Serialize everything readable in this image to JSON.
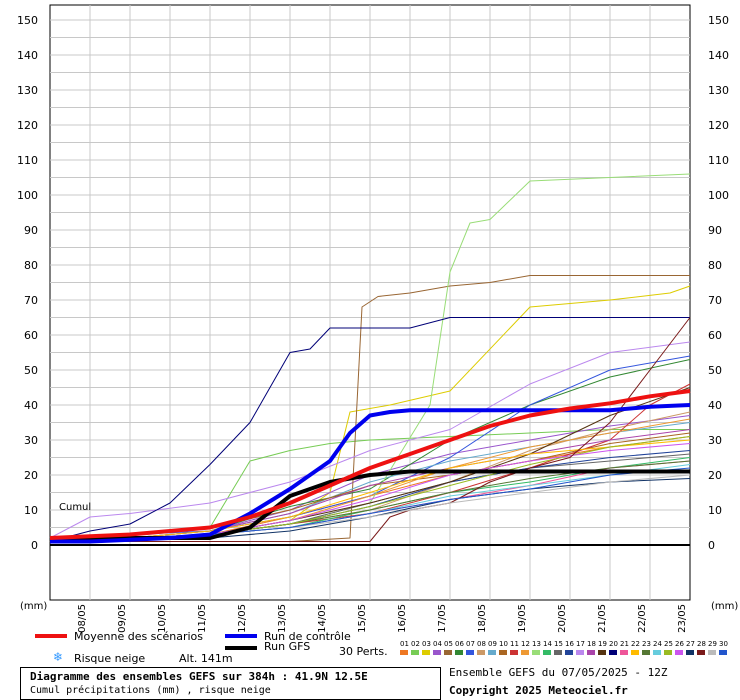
{
  "chart_data": {
    "type": "line",
    "title": "Diagramme des ensembles GEFS sur 384h : 41.9N 12.5E",
    "subtitle": "Cumul précipitations (mm) , risque neige",
    "ylabel": "(mm)",
    "xlabel": "(mm)",
    "corner_label": "Cumul",
    "ylim": [
      0,
      155
    ],
    "xlim": [
      0,
      16
    ],
    "yticks": [
      0,
      10,
      20,
      30,
      40,
      50,
      60,
      70,
      80,
      90,
      100,
      110,
      120,
      130,
      140,
      150
    ],
    "xtick_labels": [
      "08/05",
      "09/05",
      "10/05",
      "11/05",
      "12/05",
      "13/05",
      "14/05",
      "15/05",
      "16/05",
      "17/05",
      "18/05",
      "19/05",
      "20/05",
      "21/05",
      "22/05",
      "23/05"
    ],
    "grid": true,
    "series": [
      {
        "name": "Moyenne des scénarios",
        "color": "#ee1111",
        "width": 4,
        "x": [
          0,
          1,
          2,
          3,
          4,
          5,
          6,
          7,
          8,
          9,
          10,
          11,
          12,
          13,
          14,
          15,
          16
        ],
        "y": [
          2,
          2.5,
          3,
          4,
          5,
          8,
          12,
          17,
          22,
          26,
          30,
          34,
          37,
          39,
          40.5,
          42.5,
          44
        ]
      },
      {
        "name": "Run de contrôle",
        "color": "#0000ee",
        "width": 4,
        "x": [
          0,
          1,
          2,
          3,
          4,
          5,
          6,
          7,
          7.5,
          8,
          8.5,
          9,
          10,
          11,
          12,
          13,
          14,
          15,
          16
        ],
        "y": [
          1,
          1,
          1.5,
          2,
          3,
          9,
          16,
          24,
          32,
          37,
          38,
          38.5,
          38.5,
          38.5,
          38.5,
          38.5,
          38.5,
          39.5,
          40
        ]
      },
      {
        "name": "Run GFS",
        "color": "#000000",
        "width": 4,
        "x": [
          0,
          1,
          2,
          3,
          4,
          5,
          6,
          7,
          8,
          9,
          10,
          11,
          12,
          13,
          14,
          15,
          16
        ],
        "y": [
          1,
          1.5,
          2,
          2,
          2,
          5,
          14,
          18,
          20,
          21,
          21,
          21,
          21,
          21,
          21,
          21,
          21
        ]
      },
      {
        "name": "01",
        "color": "#ee7722",
        "x": [
          0,
          2,
          4,
          6,
          8,
          10,
          12,
          14,
          16
        ],
        "y": [
          1,
          2,
          3,
          8,
          14,
          20,
          24,
          28,
          31
        ]
      },
      {
        "name": "02",
        "color": "#77cc55",
        "x": [
          0,
          2,
          4,
          5,
          6,
          7,
          8,
          10,
          12,
          14,
          16
        ],
        "y": [
          1,
          3,
          5,
          24,
          27,
          29,
          30,
          31,
          32,
          33,
          33
        ]
      },
      {
        "name": "03",
        "color": "#ddcc00",
        "x": [
          0,
          2,
          4,
          6,
          7,
          7.5,
          8.5,
          10,
          12,
          14,
          15.5,
          16
        ],
        "y": [
          1,
          2,
          3,
          7,
          15,
          38,
          40,
          44,
          68,
          70,
          72,
          74
        ]
      },
      {
        "name": "04",
        "color": "#9955cc",
        "x": [
          0,
          2,
          4,
          6,
          8,
          10,
          12,
          14,
          16
        ],
        "y": [
          1,
          2,
          4,
          10,
          20,
          26,
          30,
          34,
          37
        ]
      },
      {
        "name": "05",
        "color": "#996633",
        "x": [
          0,
          2,
          4,
          6,
          7.5,
          7.8,
          8.2,
          9,
          10,
          11,
          12,
          13,
          14,
          16
        ],
        "y": [
          1,
          1,
          1,
          1,
          2,
          68,
          71,
          72,
          74,
          75,
          77,
          77,
          77,
          77
        ]
      },
      {
        "name": "06",
        "color": "#338833",
        "x": [
          0,
          2,
          4,
          6,
          8,
          10,
          12,
          14,
          16
        ],
        "y": [
          1,
          2,
          4,
          11,
          16,
          30,
          40,
          48,
          53
        ]
      },
      {
        "name": "07",
        "color": "#3355dd",
        "x": [
          0,
          2,
          4,
          6,
          8,
          10,
          12,
          14,
          16
        ],
        "y": [
          1,
          3,
          4,
          8,
          14,
          25,
          40,
          50,
          54
        ]
      },
      {
        "name": "08",
        "color": "#cc9966",
        "x": [
          0,
          2,
          4,
          6,
          8,
          10,
          12,
          14,
          16
        ],
        "y": [
          1,
          2,
          3,
          6,
          10,
          18,
          27,
          33,
          38
        ]
      },
      {
        "name": "09",
        "color": "#66aacc",
        "x": [
          0,
          2,
          4,
          6,
          8,
          10,
          12,
          14,
          16
        ],
        "y": [
          1,
          2,
          4,
          9,
          18,
          24,
          28,
          32,
          35
        ]
      },
      {
        "name": "10",
        "color": "#aa6622",
        "x": [
          0,
          2,
          4,
          6,
          8,
          10,
          12,
          14,
          16
        ],
        "y": [
          1,
          3,
          5,
          10,
          17,
          20,
          24,
          29,
          32
        ]
      },
      {
        "name": "11",
        "color": "#cc3333",
        "x": [
          0,
          2,
          4,
          6,
          8,
          10,
          12,
          14,
          15,
          16
        ],
        "y": [
          1,
          2,
          3,
          6,
          9,
          15,
          22,
          30,
          40,
          46
        ]
      },
      {
        "name": "12",
        "color": "#ee9933",
        "x": [
          0,
          2,
          4,
          6,
          8,
          10,
          12,
          14,
          16
        ],
        "y": [
          1,
          2,
          3,
          7,
          14,
          22,
          28,
          32,
          36
        ]
      },
      {
        "name": "13",
        "color": "#99dd77",
        "x": [
          0,
          2,
          4,
          6,
          8,
          9.5,
          10,
          10.5,
          11,
          12,
          14,
          16
        ],
        "y": [
          1,
          2,
          3,
          6,
          12,
          40,
          78,
          92,
          93,
          104,
          105,
          106
        ]
      },
      {
        "name": "14",
        "color": "#33bb66",
        "x": [
          0,
          2,
          4,
          6,
          8,
          10,
          12,
          14,
          16
        ],
        "y": [
          1,
          2,
          3,
          5,
          10,
          15,
          18,
          22,
          25
        ]
      },
      {
        "name": "15",
        "color": "#666666",
        "x": [
          0,
          2,
          4,
          6,
          8,
          10,
          12,
          14,
          16
        ],
        "y": [
          1,
          2,
          3,
          6,
          12,
          18,
          22,
          24,
          26
        ]
      },
      {
        "name": "16",
        "color": "#224499",
        "x": [
          0,
          2,
          4,
          6,
          8,
          10,
          12,
          14,
          16
        ],
        "y": [
          1,
          2,
          3,
          6,
          11,
          18,
          22,
          25,
          27
        ]
      },
      {
        "name": "17",
        "color": "#bb88ee",
        "x": [
          0,
          1,
          2,
          4,
          6,
          8,
          10,
          12,
          14,
          16
        ],
        "y": [
          2,
          8,
          9,
          12,
          18,
          27,
          33,
          46,
          55,
          58
        ]
      },
      {
        "name": "18",
        "color": "#aa44aa",
        "x": [
          0,
          2,
          4,
          6,
          8,
          10,
          12,
          14,
          16
        ],
        "y": [
          1,
          2,
          4,
          9,
          17,
          22,
          26,
          30,
          33
        ]
      },
      {
        "name": "19",
        "color": "#553311",
        "x": [
          0,
          2,
          4,
          6,
          8,
          10,
          12,
          14,
          16
        ],
        "y": [
          1,
          2,
          3,
          7,
          12,
          18,
          26,
          37,
          45
        ]
      },
      {
        "name": "20",
        "color": "#000077",
        "x": [
          0,
          1,
          2,
          3,
          4,
          5,
          6,
          6.5,
          7,
          8,
          9,
          10,
          11,
          12,
          14,
          16
        ],
        "y": [
          1,
          4,
          6,
          12,
          23,
          35,
          55,
          56,
          62,
          62,
          62,
          65,
          65,
          65,
          65,
          65
        ]
      },
      {
        "name": "21",
        "color": "#ee5599",
        "x": [
          0,
          2,
          4,
          6,
          8,
          10,
          12,
          14,
          16
        ],
        "y": [
          1,
          2,
          3,
          5,
          9,
          13,
          17,
          22,
          24
        ]
      },
      {
        "name": "22",
        "color": "#ffbb00",
        "x": [
          0,
          2,
          4,
          6,
          8,
          10,
          12,
          14,
          16
        ],
        "y": [
          1,
          2,
          4,
          8,
          15,
          22,
          26,
          28,
          30
        ]
      },
      {
        "name": "23",
        "color": "#557733",
        "x": [
          0,
          2,
          4,
          6,
          8,
          10,
          12,
          14,
          16
        ],
        "y": [
          1,
          2,
          3,
          6,
          10,
          15,
          19,
          22,
          24
        ]
      },
      {
        "name": "24",
        "color": "#66ccdd",
        "x": [
          0,
          2,
          4,
          6,
          8,
          10,
          12,
          14,
          16
        ],
        "y": [
          1,
          2,
          3,
          5,
          9,
          14,
          17,
          20,
          23
        ]
      },
      {
        "name": "25",
        "color": "#99bb22",
        "x": [
          0,
          2,
          4,
          6,
          8,
          10,
          12,
          14,
          16
        ],
        "y": [
          1,
          2,
          3,
          6,
          11,
          17,
          23,
          28,
          31
        ]
      },
      {
        "name": "26",
        "color": "#cc55ee",
        "x": [
          0,
          2,
          4,
          6,
          8,
          10,
          12,
          14,
          16
        ],
        "y": [
          1,
          2,
          3,
          7,
          13,
          20,
          24,
          27,
          29
        ]
      },
      {
        "name": "27",
        "color": "#113366",
        "x": [
          0,
          2,
          4,
          6,
          8,
          10,
          12,
          14,
          16
        ],
        "y": [
          1,
          2,
          2,
          4,
          8,
          13,
          16,
          18,
          19
        ]
      },
      {
        "name": "28",
        "color": "#7a1a1a",
        "x": [
          0,
          2,
          4,
          6,
          8,
          8.5,
          9,
          10,
          11,
          12,
          13,
          14,
          15,
          16
        ],
        "y": [
          1,
          1,
          1,
          1,
          1,
          8,
          10,
          12,
          18,
          22,
          25,
          35,
          50,
          65
        ]
      },
      {
        "name": "29",
        "color": "#bbbbbb",
        "x": [
          0,
          2,
          4,
          6,
          8,
          10,
          12,
          14,
          16
        ],
        "y": [
          1,
          2,
          3,
          5,
          8,
          12,
          15,
          18,
          20
        ]
      },
      {
        "name": "30",
        "color": "#2255cc",
        "x": [
          0,
          2,
          4,
          6,
          8,
          10,
          12,
          14,
          16
        ],
        "y": [
          1,
          2,
          3,
          5,
          9,
          13,
          16,
          20,
          22
        ]
      }
    ]
  },
  "legend": {
    "mean": {
      "label": "Moyenne des scénarios",
      "color": "#ee1111"
    },
    "control": {
      "label": "Run de contrôle",
      "color": "#0000ee"
    },
    "gfs": {
      "label": "Run GFS",
      "color": "#000000"
    },
    "snow": {
      "label": "Risque neige",
      "icon": "snowflake-icon",
      "color": "#3399ff"
    },
    "altitude": "Alt. 141m",
    "perts_label": "30 Perts.",
    "member_numbers": [
      "01",
      "02",
      "03",
      "04",
      "05",
      "06",
      "07",
      "08",
      "09",
      "10",
      "11",
      "12",
      "13",
      "14",
      "15",
      "16",
      "17",
      "18",
      "19",
      "20",
      "21",
      "22",
      "23",
      "24",
      "25",
      "26",
      "27",
      "28",
      "29",
      "30"
    ]
  },
  "info": {
    "title": "Diagramme des ensembles GEFS sur 384h : 41.9N 12.5E",
    "subtitle": "Cumul précipitations (mm) , risque neige",
    "run": "Ensemble GEFS du 07/05/2025 - 12Z",
    "copyright": "Copyright 2025 Meteociel.fr"
  }
}
